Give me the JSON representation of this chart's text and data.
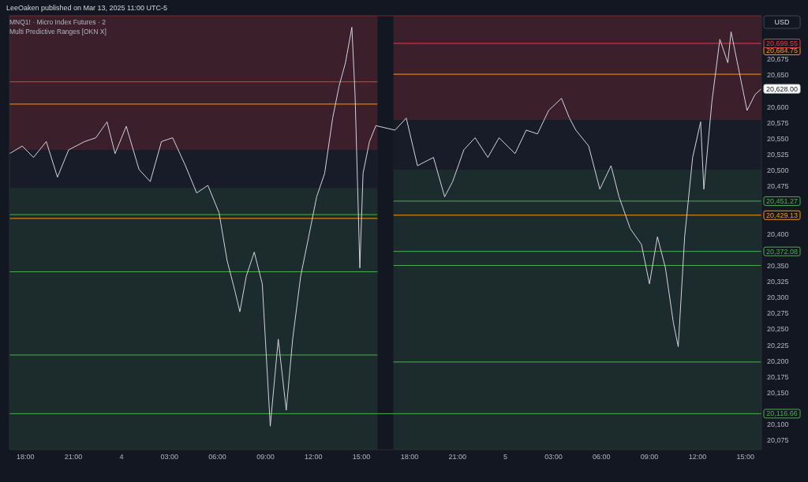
{
  "chart_data": {
    "type": "line",
    "title": "LeeOaken published on Mar 13, 2025 11:00 UTC-5",
    "subtitle": "MNQ1! · Micro Index Futures · 2",
    "annotations": [
      "Multi Predictive Ranges [OKN X]",
      "USD",
      {
        "text": "20,684.75",
        "x": "2025-03-05T16:00",
        "y": 20684.75
      }
    ],
    "xlim": [
      "2025-03-03T17:00",
      "2025-03-05T16:00"
    ],
    "ylim": [
      20060,
      20743
    ],
    "grid": false,
    "xticks": [
      {
        "value": "2025-03-03T18:00",
        "label": "18:00"
      },
      {
        "value": "2025-03-03T21:00",
        "label": "21:00"
      },
      {
        "value": "2025-03-04T00:00",
        "label": "4"
      },
      {
        "value": "2025-03-04T03:00",
        "label": "03:00"
      },
      {
        "value": "2025-03-04T06:00",
        "label": "06:00"
      },
      {
        "value": "2025-03-04T09:00",
        "label": "09:00"
      },
      {
        "value": "2025-03-04T12:00",
        "label": "12:00"
      },
      {
        "value": "2025-03-04T15:00",
        "label": "15:00"
      },
      {
        "value": "2025-03-04T18:00",
        "label": "18:00"
      },
      {
        "value": "2025-03-04T21:00",
        "label": "21:00"
      },
      {
        "value": "2025-03-05T00:00",
        "label": "5"
      },
      {
        "value": "2025-03-05T03:00",
        "label": "03:00"
      },
      {
        "value": "2025-03-05T06:00",
        "label": "06:00"
      },
      {
        "value": "2025-03-05T09:00",
        "label": "09:00"
      },
      {
        "value": "2025-03-05T12:00",
        "label": "12:00"
      },
      {
        "value": "2025-03-05T15:00",
        "label": "15:00"
      }
    ],
    "yticks": [
      {
        "value": 20075,
        "label": "20,075"
      },
      {
        "value": 20100,
        "label": "20,100"
      },
      {
        "value": 20150,
        "label": "20,150"
      },
      {
        "value": 20175,
        "label": "20,175"
      },
      {
        "value": 20200,
        "label": "20,200"
      },
      {
        "value": 20225,
        "label": "20,225"
      },
      {
        "value": 20250,
        "label": "20,250"
      },
      {
        "value": 20275,
        "label": "20,275"
      },
      {
        "value": 20300,
        "label": "20,300"
      },
      {
        "value": 20325,
        "label": "20,325"
      },
      {
        "value": 20350,
        "label": "20,350"
      },
      {
        "value": 20400,
        "label": "20,400"
      },
      {
        "value": 20475,
        "label": "20,475"
      },
      {
        "value": 20500,
        "label": "20,500"
      },
      {
        "value": 20525,
        "label": "20,525"
      },
      {
        "value": 20550,
        "label": "20,550"
      },
      {
        "value": 20575,
        "label": "20,575"
      },
      {
        "value": 20600,
        "label": "20,600"
      },
      {
        "value": 20650,
        "label": "20,650"
      },
      {
        "value": 20675,
        "label": "20,675"
      }
    ],
    "series": [
      {
        "type": "area",
        "color": "#3b1f2b",
        "x": [
          "2025-03-03T17:00",
          "2025-03-04T16:00"
        ],
        "values": [
          20743,
          20743
        ]
      },
      {
        "type": "area",
        "color": "#171c28",
        "x": [
          "2025-03-03T17:00",
          "2025-03-04T16:00"
        ],
        "values": [
          20532,
          20532
        ]
      },
      {
        "type": "area",
        "color": "#1c2b2b",
        "x": [
          "2025-03-03T17:00",
          "2025-03-04T16:00"
        ],
        "values": [
          20472,
          20472
        ]
      },
      {
        "type": "area",
        "color": "#3b1f2b",
        "x": [
          "2025-03-04T17:00",
          "2025-03-05T16:00"
        ],
        "values": [
          20743,
          20743
        ]
      },
      {
        "type": "area",
        "color": "#171c28",
        "x": [
          "2025-03-04T17:00",
          "2025-03-05T16:00"
        ],
        "values": [
          20579,
          20579
        ]
      },
      {
        "type": "area",
        "color": "#1c2b2b",
        "x": [
          "2025-03-04T17:00",
          "2025-03-05T16:00"
        ],
        "values": [
          20501,
          20501
        ]
      },
      {
        "type": "line",
        "color": "#f23645",
        "x": [
          "2025-03-03T17:00",
          "2025-03-04T16:00"
        ],
        "values": [
          20639,
          20639
        ]
      },
      {
        "type": "line",
        "color": "#ff9800",
        "x": [
          "2025-03-03T17:00",
          "2025-03-04T16:00"
        ],
        "values": [
          20604,
          20604
        ]
      },
      {
        "type": "line",
        "color": "#4caf50",
        "x": [
          "2025-03-03T17:00",
          "2025-03-04T16:00"
        ],
        "values": [
          20430,
          20430
        ]
      },
      {
        "type": "line",
        "color": "#ff9800",
        "x": [
          "2025-03-03T17:00",
          "2025-03-04T16:00"
        ],
        "values": [
          20424,
          20424
        ]
      },
      {
        "type": "line",
        "color": "#4caf50",
        "x": [
          "2025-03-03T17:00",
          "2025-03-04T16:00"
        ],
        "values": [
          20340,
          20340
        ]
      },
      {
        "type": "line",
        "color": "#4caf50",
        "x": [
          "2025-03-03T17:00",
          "2025-03-04T16:00"
        ],
        "values": [
          20209,
          20209
        ]
      },
      {
        "type": "line",
        "color": "#f23645",
        "x": [
          "2025-03-04T17:00",
          "2025-03-05T16:00"
        ],
        "values": [
          20699.55,
          20699.55
        ],
        "value_labels": [
          null,
          "20,699.55"
        ]
      },
      {
        "type": "line",
        "color": "#ff9800",
        "x": [
          "2025-03-04T17:00",
          "2025-03-05T16:00"
        ],
        "values": [
          20651,
          20651
        ]
      },
      {
        "type": "line",
        "color": "#4caf50",
        "x": [
          "2025-03-04T17:00",
          "2025-03-05T16:00"
        ],
        "values": [
          20451.27,
          20451.27
        ],
        "value_labels": [
          null,
          "20,451.27"
        ]
      },
      {
        "type": "line",
        "color": "#ff9800",
        "x": [
          "2025-03-04T17:00",
          "2025-03-05T16:00"
        ],
        "values": [
          20429.13,
          20429.13
        ],
        "value_labels": [
          null,
          "20,429.13"
        ]
      },
      {
        "type": "line",
        "color": "#4caf50",
        "x": [
          "2025-03-04T17:00",
          "2025-03-05T16:00"
        ],
        "values": [
          20372.08,
          20372.08
        ],
        "value_labels": [
          null,
          "20,372.08"
        ]
      },
      {
        "type": "line",
        "color": "#4caf50",
        "x": [
          "2025-03-04T17:00",
          "2025-03-05T16:00"
        ],
        "values": [
          20350,
          20350
        ]
      },
      {
        "type": "line",
        "color": "#4caf50",
        "x": [
          "2025-03-04T17:00",
          "2025-03-05T16:00"
        ],
        "values": [
          20198,
          20198
        ]
      },
      {
        "type": "line",
        "color": "#4caf50",
        "x": [
          "2025-03-03T17:00",
          "2025-03-05T16:00"
        ],
        "values": [
          20116.66,
          20116.66
        ],
        "value_labels": [
          null,
          "20,116.66"
        ]
      },
      {
        "color": "#d1d4dc",
        "x": [
          "2025-03-03T17:00",
          "2025-03-03T17:48",
          "2025-03-03T18:30",
          "2025-03-03T19:18",
          "2025-03-03T20:00",
          "2025-03-03T20:42",
          "2025-03-03T21:42",
          "2025-03-03T22:24",
          "2025-03-03T23:06",
          "2025-03-03T23:36",
          "2025-03-04T00:18",
          "2025-03-04T01:06",
          "2025-03-04T01:48",
          "2025-03-04T02:30",
          "2025-03-04T03:12",
          "2025-03-04T04:00",
          "2025-03-04T04:42",
          "2025-03-04T05:24",
          "2025-03-04T06:06",
          "2025-03-04T06:36",
          "2025-03-04T07:06",
          "2025-03-04T07:24",
          "2025-03-04T07:48",
          "2025-03-04T08:18",
          "2025-03-04T08:48",
          "2025-03-04T09:18",
          "2025-03-04T09:48",
          "2025-03-04T10:18",
          "2025-03-04T10:42",
          "2025-03-04T11:12",
          "2025-03-04T11:42",
          "2025-03-04T12:12",
          "2025-03-04T12:42",
          "2025-03-04T13:12",
          "2025-03-04T13:36",
          "2025-03-04T14:00",
          "2025-03-04T14:24",
          "2025-03-04T14:36",
          "2025-03-04T14:54",
          "2025-03-04T15:06",
          "2025-03-04T15:30",
          "2025-03-04T15:54",
          "2025-03-04T17:06",
          "2025-03-04T17:48",
          "2025-03-04T18:30",
          "2025-03-04T19:30",
          "2025-03-04T20:12",
          "2025-03-04T20:42",
          "2025-03-04T21:24",
          "2025-03-04T22:06",
          "2025-03-04T22:54",
          "2025-03-04T23:36",
          "2025-03-05T00:36",
          "2025-03-05T01:18",
          "2025-03-05T02:00",
          "2025-03-05T02:42",
          "2025-03-05T03:30",
          "2025-03-05T04:00",
          "2025-03-05T04:24",
          "2025-03-05T05:12",
          "2025-03-05T05:54",
          "2025-03-05T06:36",
          "2025-03-05T07:06",
          "2025-03-05T07:48",
          "2025-03-05T08:30",
          "2025-03-05T09:00",
          "2025-03-05T09:30",
          "2025-03-05T10:00",
          "2025-03-05T10:30",
          "2025-03-05T10:48",
          "2025-03-05T11:12",
          "2025-03-05T11:42",
          "2025-03-05T12:12",
          "2025-03-05T12:24",
          "2025-03-05T12:54",
          "2025-03-05T13:24",
          "2025-03-05T13:54",
          "2025-03-05T14:06",
          "2025-03-05T14:36",
          "2025-03-05T15:06",
          "2025-03-05T15:36",
          "2025-03-05T16:00"
        ],
        "values": [
          20526,
          20538,
          20520,
          20545,
          20489,
          20532,
          20545,
          20551,
          20576,
          20526,
          20569,
          20501,
          20482,
          20545,
          20551,
          20507,
          20464,
          20476,
          20433,
          20358,
          20309,
          20277,
          20333,
          20371,
          20321,
          20097,
          20234,
          20122,
          20234,
          20333,
          20395,
          20458,
          20495,
          20582,
          20632,
          20669,
          20725,
          20619,
          20346,
          20495,
          20545,
          20570,
          20563,
          20582,
          20507,
          20520,
          20458,
          20482,
          20532,
          20551,
          20520,
          20551,
          20526,
          20563,
          20557,
          20594,
          20613,
          20582,
          20563,
          20538,
          20470,
          20507,
          20458,
          20408,
          20383,
          20321,
          20395,
          20346,
          20259,
          20222,
          20395,
          20520,
          20576,
          20470,
          20607,
          20706,
          20669,
          20718,
          20656,
          20594,
          20619,
          20628
        ],
        "value_labels": [
          null,
          null,
          null,
          null,
          null,
          null,
          null,
          null,
          null,
          null,
          null,
          null,
          null,
          null,
          null,
          null,
          null,
          null,
          null,
          null,
          null,
          null,
          null,
          null,
          null,
          null,
          null,
          null,
          null,
          null,
          null,
          null,
          null,
          null,
          null,
          null,
          null,
          null,
          null,
          null,
          null,
          null,
          null,
          null,
          null,
          null,
          null,
          null,
          null,
          null,
          null,
          null,
          null,
          null,
          null,
          null,
          null,
          null,
          null,
          null,
          null,
          null,
          null,
          null,
          null,
          null,
          null,
          null,
          null,
          null,
          null,
          null,
          null,
          null,
          null,
          null,
          null,
          null,
          null,
          null,
          null,
          "20,628.00"
        ]
      }
    ]
  }
}
